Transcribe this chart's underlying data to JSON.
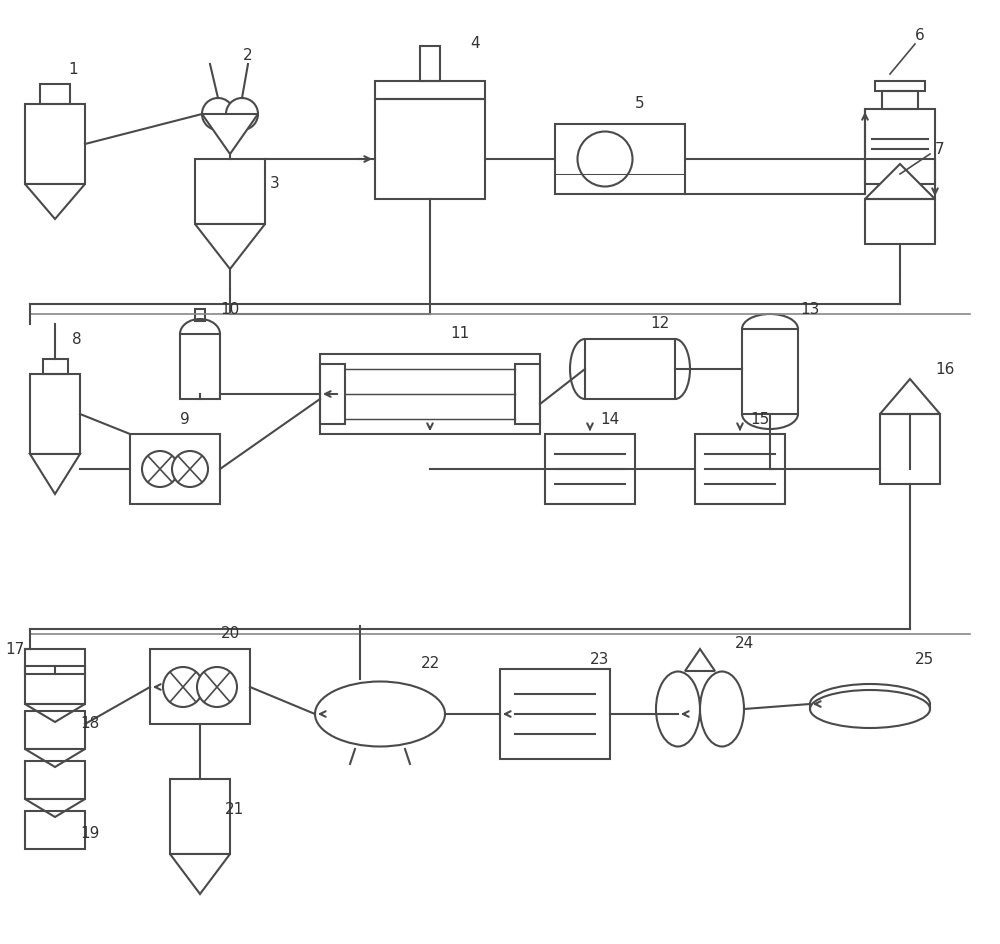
{
  "bg_color": "#ffffff",
  "line_color": "#4a4a4a",
  "line_width": 1.5,
  "figsize": [
    10.0,
    9.44
  ]
}
